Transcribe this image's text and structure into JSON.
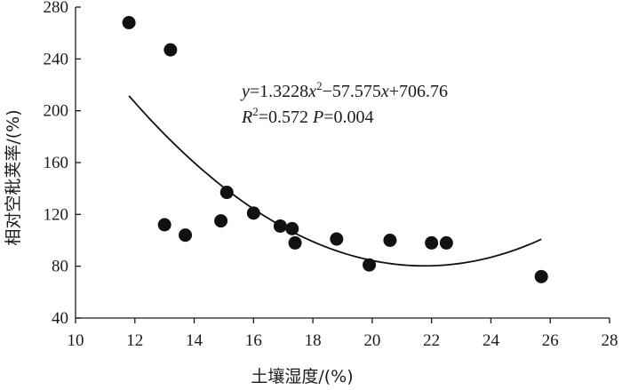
{
  "chart_data": {
    "type": "scatter",
    "xlabel": "土壤湿度/(%)",
    "ylabel": "相对空秕荚率/(%)",
    "xlim": [
      10,
      28
    ],
    "ylim": [
      40,
      280
    ],
    "x_ticks": [
      "10",
      "12",
      "14",
      "16",
      "18",
      "20",
      "22",
      "24",
      "26",
      "28"
    ],
    "y_ticks": [
      "40",
      "80",
      "120",
      "160",
      "200",
      "240",
      "280"
    ],
    "points": [
      {
        "x": 11.8,
        "y": 268
      },
      {
        "x": 13.2,
        "y": 247
      },
      {
        "x": 13.0,
        "y": 112
      },
      {
        "x": 13.7,
        "y": 104
      },
      {
        "x": 14.9,
        "y": 115
      },
      {
        "x": 15.1,
        "y": 137
      },
      {
        "x": 16.0,
        "y": 121
      },
      {
        "x": 16.9,
        "y": 111
      },
      {
        "x": 17.3,
        "y": 109
      },
      {
        "x": 17.4,
        "y": 98
      },
      {
        "x": 18.8,
        "y": 101
      },
      {
        "x": 19.9,
        "y": 81
      },
      {
        "x": 20.6,
        "y": 100
      },
      {
        "x": 22.0,
        "y": 98
      },
      {
        "x": 22.5,
        "y": 98
      },
      {
        "x": 25.7,
        "y": 72
      }
    ],
    "fit": {
      "type": "quadratic",
      "coefficients": [
        1.3228,
        -57.575,
        706.76
      ],
      "x_range": [
        11.8,
        25.7
      ]
    },
    "annotations": {
      "equation": {
        "y_var": "y",
        "eq1": "=1.3228",
        "x_var1": "x",
        "exp": "2",
        "mid": "−57.575",
        "x_var2": "x",
        "tail": "+706.76"
      },
      "stats": {
        "r_var": "R",
        "r_exp": "2",
        "r_val": "=0.572 ",
        "p_var": "P",
        "p_val": "=0.004"
      }
    },
    "grid": false,
    "legend": "none"
  }
}
